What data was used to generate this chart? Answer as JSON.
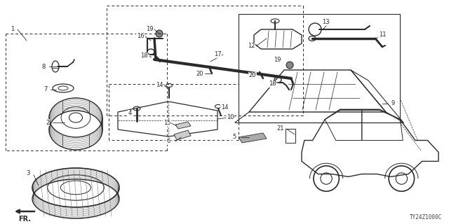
{
  "bg_color": "#f5f5f5",
  "line_color": "#2a2a2a",
  "diagram_code": "TY24Z1000C",
  "figsize": [
    6.4,
    3.2
  ],
  "dpi": 100
}
